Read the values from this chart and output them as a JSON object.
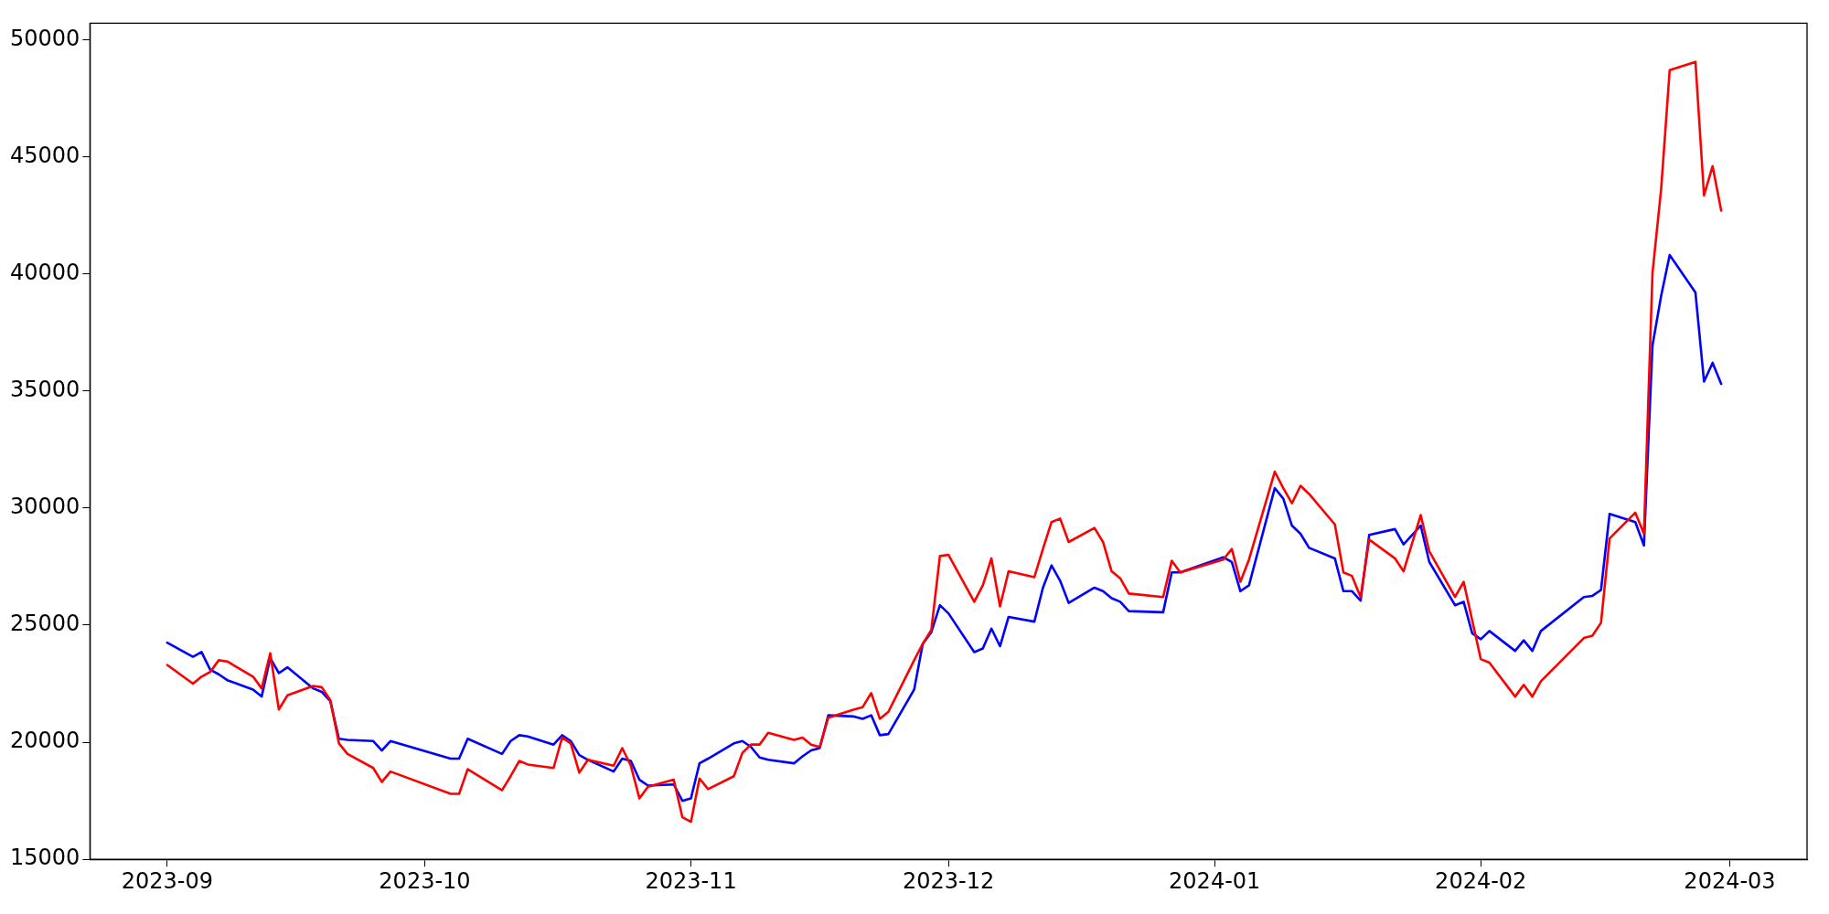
{
  "chart_data": {
    "type": "line",
    "x": [
      "2023-09-01",
      "2023-09-04",
      "2023-09-05",
      "2023-09-06",
      "2023-09-07",
      "2023-09-08",
      "2023-09-11",
      "2023-09-12",
      "2023-09-13",
      "2023-09-14",
      "2023-09-15",
      "2023-09-18",
      "2023-09-19",
      "2023-09-20",
      "2023-09-21",
      "2023-09-22",
      "2023-09-25",
      "2023-09-26",
      "2023-09-27",
      "2023-10-04",
      "2023-10-05",
      "2023-10-06",
      "2023-10-10",
      "2023-10-11",
      "2023-10-12",
      "2023-10-13",
      "2023-10-16",
      "2023-10-17",
      "2023-10-18",
      "2023-10-19",
      "2023-10-20",
      "2023-10-23",
      "2023-10-24",
      "2023-10-25",
      "2023-10-26",
      "2023-10-27",
      "2023-10-30",
      "2023-10-31",
      "2023-11-01",
      "2023-11-02",
      "2023-11-03",
      "2023-11-06",
      "2023-11-07",
      "2023-11-08",
      "2023-11-09",
      "2023-11-10",
      "2023-11-13",
      "2023-11-14",
      "2023-11-15",
      "2023-11-16",
      "2023-11-17",
      "2023-11-20",
      "2023-11-21",
      "2023-11-22",
      "2023-11-23",
      "2023-11-24",
      "2023-11-27",
      "2023-11-28",
      "2023-11-29",
      "2023-11-30",
      "2023-12-01",
      "2023-12-04",
      "2023-12-05",
      "2023-12-06",
      "2023-12-07",
      "2023-12-08",
      "2023-12-11",
      "2023-12-12",
      "2023-12-13",
      "2023-12-14",
      "2023-12-15",
      "2023-12-18",
      "2023-12-19",
      "2023-12-20",
      "2023-12-21",
      "2023-12-22",
      "2023-12-26",
      "2023-12-27",
      "2023-12-28",
      "2024-01-02",
      "2024-01-03",
      "2024-01-04",
      "2024-01-05",
      "2024-01-08",
      "2024-01-09",
      "2024-01-10",
      "2024-01-11",
      "2024-01-12",
      "2024-01-15",
      "2024-01-16",
      "2024-01-17",
      "2024-01-18",
      "2024-01-19",
      "2024-01-22",
      "2024-01-23",
      "2024-01-25",
      "2024-01-26",
      "2024-01-29",
      "2024-01-30",
      "2024-01-31",
      "2024-02-01",
      "2024-02-02",
      "2024-02-05",
      "2024-02-06",
      "2024-02-07",
      "2024-02-08",
      "2024-02-13",
      "2024-02-14",
      "2024-02-15",
      "2024-02-16",
      "2024-02-19",
      "2024-02-20",
      "2024-02-21",
      "2024-02-22",
      "2024-02-23",
      "2024-02-26",
      "2024-02-27",
      "2024-02-28",
      "2024-02-29"
    ],
    "series": [
      {
        "color": "#ff0000",
        "values": [
          23300,
          22500,
          22800,
          23000,
          23500,
          23450,
          22800,
          22300,
          23800,
          21400,
          22000,
          22400,
          22350,
          21800,
          19950,
          19500,
          18900,
          18300,
          18750,
          17800,
          17800,
          18850,
          17950,
          18550,
          19200,
          19050,
          18900,
          20200,
          19950,
          18700,
          19250,
          19000,
          19750,
          19000,
          17600,
          18100,
          18400,
          16800,
          16600,
          18450,
          18000,
          18550,
          19550,
          19900,
          19900,
          20400,
          20100,
          20200,
          19900,
          19800,
          21050,
          21400,
          21500,
          22100,
          21000,
          21300,
          23500,
          24200,
          24800,
          27950,
          28000,
          26000,
          26700,
          27850,
          25800,
          27300,
          27050,
          28250,
          29400,
          29550,
          28550,
          29150,
          28550,
          27300,
          27000,
          26350,
          26200,
          27750,
          27250,
          27800,
          28250,
          26850,
          27800,
          31550,
          30850,
          30200,
          30950,
          30600,
          29300,
          27250,
          27100,
          26200,
          28650,
          27850,
          27300,
          29700,
          28150,
          26200,
          26850,
          25200,
          23550,
          23400,
          21950,
          22450,
          21950,
          22600,
          24450,
          24550,
          25100,
          28700,
          29800,
          28900,
          40050,
          43600,
          48700,
          49050,
          43350,
          44600,
          42700
        ]
      },
      {
        "color": "#0000ff",
        "values": [
          24250,
          23650,
          23850,
          23100,
          22900,
          22650,
          22250,
          21950,
          23600,
          22950,
          23200,
          22300,
          22150,
          21750,
          20150,
          20100,
          20050,
          19650,
          20050,
          19300,
          19300,
          20150,
          19500,
          20050,
          20300,
          20250,
          19900,
          20300,
          20050,
          19450,
          19250,
          18750,
          19300,
          19200,
          18400,
          18150,
          18200,
          17500,
          17600,
          19100,
          19300,
          19950,
          20050,
          19800,
          19350,
          19250,
          19100,
          19400,
          19650,
          19750,
          21150,
          21100,
          21000,
          21150,
          20300,
          20350,
          22250,
          24200,
          24700,
          25850,
          25500,
          23850,
          24000,
          24850,
          24100,
          25350,
          25150,
          26600,
          27550,
          26900,
          25950,
          26600,
          26450,
          26150,
          26000,
          25600,
          25550,
          27250,
          27250,
          27900,
          27700,
          26450,
          26700,
          30850,
          30400,
          29250,
          28900,
          28300,
          27850,
          26450,
          26450,
          26050,
          28850,
          29100,
          28450,
          29250,
          27700,
          25850,
          26000,
          24650,
          24400,
          24750,
          23900,
          24350,
          23900,
          24750,
          26200,
          26250,
          26500,
          29750,
          29400,
          28400,
          36950,
          39050,
          40800,
          39200,
          35400,
          36200,
          35300
        ]
      }
    ],
    "xlim": [
      "2023-08-23",
      "2024-03-10"
    ],
    "xticks": [
      "2023-09",
      "2023-10",
      "2023-11",
      "2023-12",
      "2024-01",
      "2024-02",
      "2024-03"
    ],
    "ylim": [
      15000,
      50700
    ],
    "yticks": [
      15000,
      20000,
      25000,
      30000,
      35000,
      40000,
      45000,
      50000
    ]
  }
}
